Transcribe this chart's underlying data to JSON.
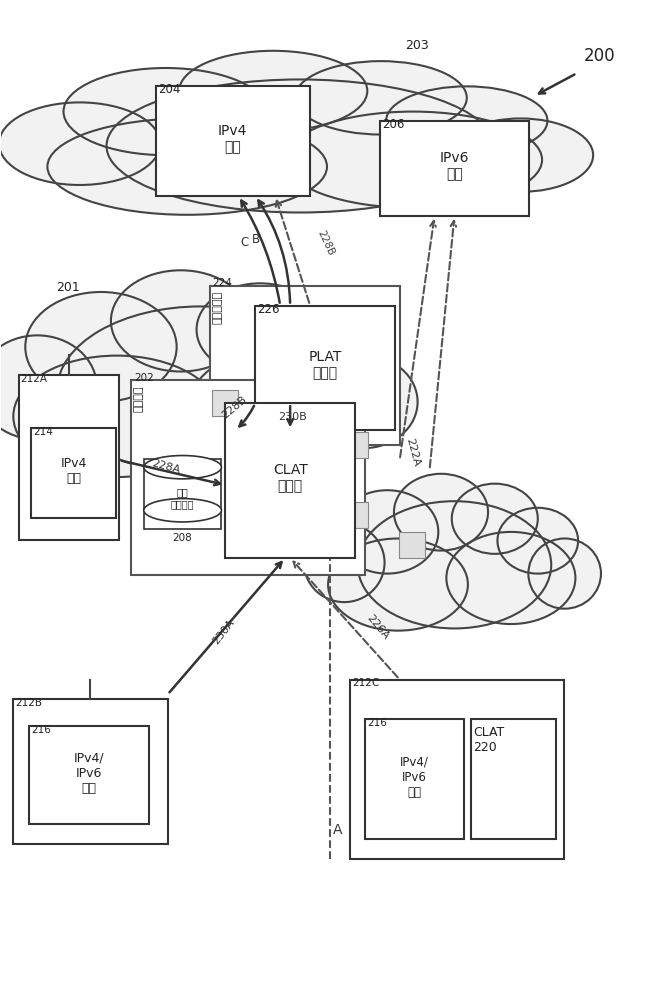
{
  "bg_color": "#ffffff",
  "label_200": "200",
  "label_203": "203",
  "label_201": "201",
  "label_224": "224",
  "label_202": "202",
  "label_226": "226",
  "label_206": "206",
  "label_204": "204",
  "label_212A": "212A",
  "label_212B": "212B",
  "label_212C": "212C",
  "label_214": "214",
  "label_216": "216",
  "label_208": "208",
  "label_220": "220",
  "label_222A": "222A",
  "label_226A": "226A",
  "label_228A": "228A",
  "label_228B": "228B",
  "label_230A": "230A",
  "label_230B": "230B",
  "text_clat": "CLAT\n处理器",
  "text_plat": "PLAT\n处理器",
  "text_ipv4_svc": "IPv4\n服务",
  "text_ipv6_svc": "IPv6\n服务",
  "text_ipv4_app": "IPv4\n应用",
  "text_ipv4v6_app": "IPv4/\nIPv6\n应用",
  "text_datastorage": "数据\n存储装置",
  "text_gateway": "网关节点",
  "text_provider": "提供商边缘",
  "text_clat220": "CLAT\n220"
}
